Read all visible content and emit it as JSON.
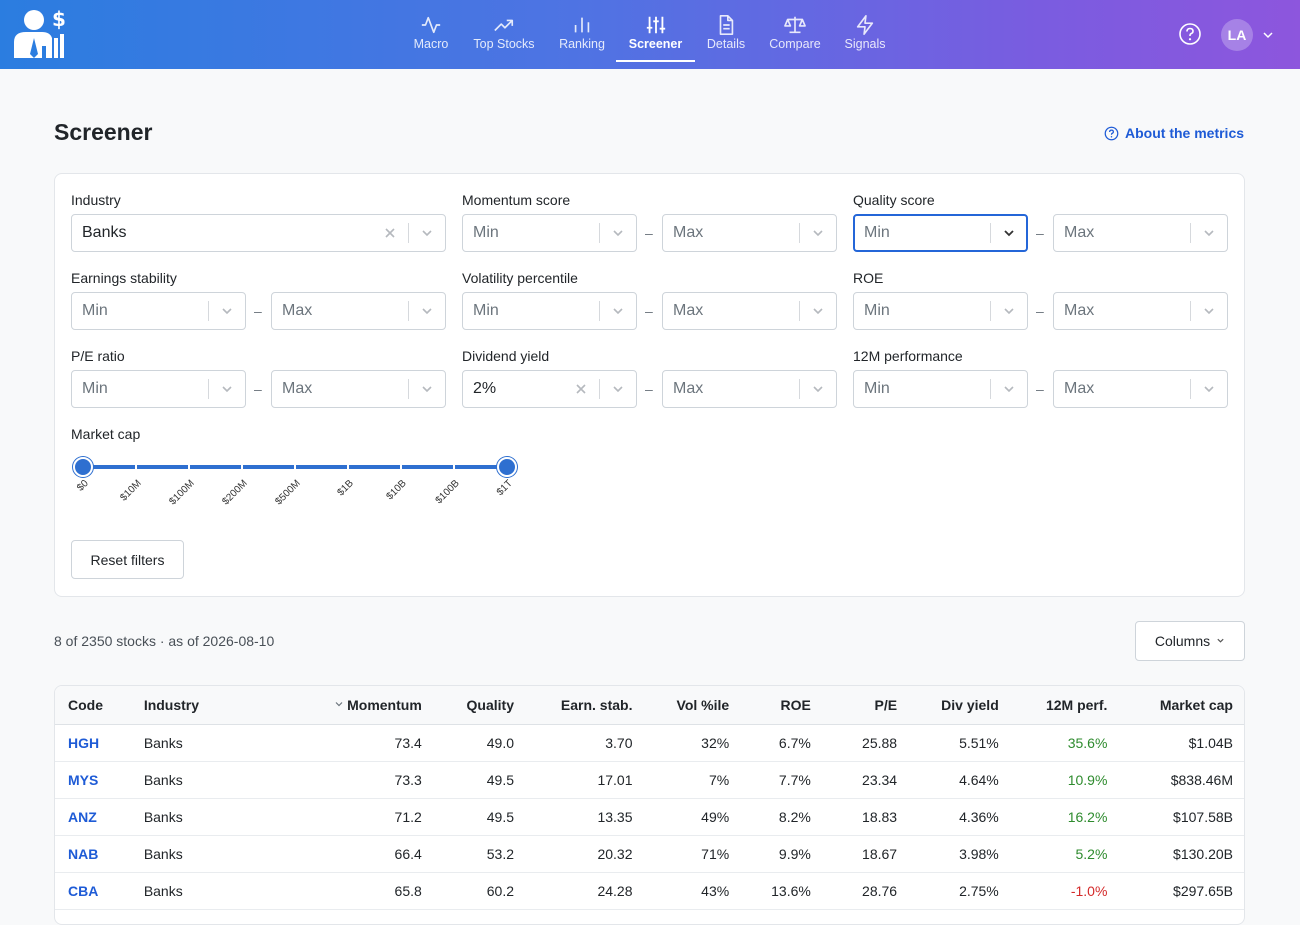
{
  "header": {
    "nav": [
      {
        "label": "Macro",
        "icon": "activity-icon"
      },
      {
        "label": "Top Stocks",
        "icon": "trending-up-icon"
      },
      {
        "label": "Ranking",
        "icon": "bar-chart-icon"
      },
      {
        "label": "Screener",
        "icon": "sliders-icon",
        "active": true
      },
      {
        "label": "Details",
        "icon": "document-icon"
      },
      {
        "label": "Compare",
        "icon": "scale-icon"
      },
      {
        "label": "Signals",
        "icon": "lightning-icon"
      }
    ],
    "user_initials": "LA"
  },
  "page": {
    "title": "Screener",
    "about_link": "About the metrics"
  },
  "filters": {
    "industry": {
      "label": "Industry",
      "value": "Banks"
    },
    "momentum": {
      "label": "Momentum score",
      "min": "Min",
      "max": "Max"
    },
    "quality": {
      "label": "Quality score",
      "min": "Min",
      "max": "Max"
    },
    "earnings_stability": {
      "label": "Earnings stability",
      "min": "Min",
      "max": "Max"
    },
    "volatility": {
      "label": "Volatility percentile",
      "min": "Min",
      "max": "Max"
    },
    "roe": {
      "label": "ROE",
      "min": "Min",
      "max": "Max"
    },
    "pe": {
      "label": "P/E ratio",
      "min": "Min",
      "max": "Max"
    },
    "dividend_yield": {
      "label": "Dividend yield",
      "min_value": "2%",
      "max": "Max"
    },
    "performance_12m": {
      "label": "12M performance",
      "min": "Min",
      "max": "Max"
    },
    "dash": "–",
    "market_cap": {
      "label": "Market cap",
      "ticks": [
        "$0",
        "$10M",
        "$100M",
        "$200M",
        "$500M",
        "$1B",
        "$10B",
        "$100B",
        "$1T"
      ],
      "range_low": "$0",
      "range_high": "$1T"
    },
    "reset_label": "Reset filters"
  },
  "results": {
    "summary": "8 of 2350 stocks · as of 2026-08-10",
    "columns_label": "Columns",
    "headers": [
      "Code",
      "Industry",
      "Momentum",
      "Quality",
      "Earn. stab.",
      "Vol %ile",
      "ROE",
      "P/E",
      "Div yield",
      "12M perf.",
      "Market cap"
    ],
    "sort_column": "Momentum",
    "sort_direction": "descending",
    "rows": [
      {
        "code": "HGH",
        "industry": "Banks",
        "momentum": "73.4",
        "quality": "49.0",
        "earn_stab": "3.70",
        "vol": "32%",
        "roe": "6.7%",
        "pe": "25.88",
        "div": "5.51%",
        "perf": "35.6%",
        "cap": "$1.04B"
      },
      {
        "code": "MYS",
        "industry": "Banks",
        "momentum": "73.3",
        "quality": "49.5",
        "earn_stab": "17.01",
        "vol": "7%",
        "roe": "7.7%",
        "pe": "23.34",
        "div": "4.64%",
        "perf": "10.9%",
        "cap": "$838.46M"
      },
      {
        "code": "ANZ",
        "industry": "Banks",
        "momentum": "71.2",
        "quality": "49.5",
        "earn_stab": "13.35",
        "vol": "49%",
        "roe": "8.2%",
        "pe": "18.83",
        "div": "4.36%",
        "perf": "16.2%",
        "cap": "$107.58B"
      },
      {
        "code": "NAB",
        "industry": "Banks",
        "momentum": "66.4",
        "quality": "53.2",
        "earn_stab": "20.32",
        "vol": "71%",
        "roe": "9.9%",
        "pe": "18.67",
        "div": "3.98%",
        "perf": "5.2%",
        "cap": "$130.20B"
      },
      {
        "code": "CBA",
        "industry": "Banks",
        "momentum": "65.8",
        "quality": "60.2",
        "earn_stab": "24.28",
        "vol": "43%",
        "roe": "13.6%",
        "pe": "28.76",
        "div": "2.75%",
        "perf": "-1.0%",
        "cap": "$297.65B"
      }
    ]
  },
  "colors": {
    "accent": "#2e6fd0",
    "link": "#1e5bd6",
    "positive": "#2e8b2e",
    "negative": "#d42a2a",
    "header_gradient_start": "#2b7de0",
    "header_gradient_end": "#8d56dd"
  }
}
